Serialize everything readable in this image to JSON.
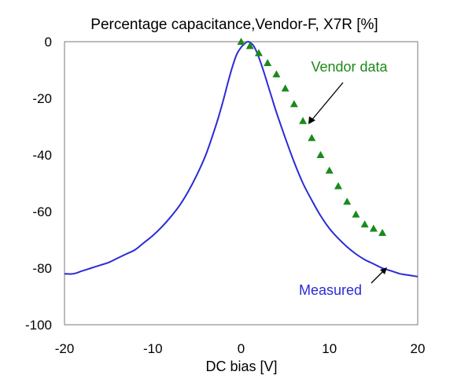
{
  "chart_data": {
    "type": "line",
    "title": "Percentage capacitance,Vendor-F, X7R [%]",
    "xlabel": "DC bias [V]",
    "ylabel": "",
    "xlim": [
      -20,
      20
    ],
    "ylim": [
      -100,
      0
    ],
    "x_ticks": [
      "-20",
      "-10",
      "0",
      "10",
      "20"
    ],
    "y_ticks": [
      "0",
      "-20",
      "-40",
      "-60",
      "-80",
      "-100"
    ],
    "grid": false,
    "colors": {
      "measured": "#2b2bd6",
      "vendor": "#1a8a1a",
      "arrow": "#000000"
    },
    "series": [
      {
        "name": "Measured",
        "style": "line",
        "x": [
          -20,
          -19,
          -18,
          -17,
          -16,
          -15,
          -14,
          -13,
          -12,
          -11,
          -10,
          -9,
          -8,
          -7,
          -6,
          -5,
          -4,
          -3,
          -2.5,
          -2,
          -1.5,
          -1,
          -0.5,
          0,
          0.3,
          0.6,
          0.8,
          1,
          1.3,
          1.6,
          2,
          2.5,
          3,
          3.5,
          4,
          5,
          6,
          7,
          8,
          9,
          10,
          11,
          12,
          13,
          14,
          15,
          16,
          17,
          18,
          19,
          20
        ],
        "y": [
          -82,
          -82,
          -81,
          -80,
          -79,
          -78,
          -76.5,
          -75,
          -73.5,
          -71,
          -68.5,
          -65.5,
          -62,
          -58,
          -53,
          -47,
          -40,
          -31,
          -26,
          -20.5,
          -14.5,
          -9,
          -4.5,
          -2,
          -1,
          -0.2,
          0,
          -0.3,
          -1,
          -2.5,
          -5.5,
          -10,
          -15,
          -20,
          -25,
          -34,
          -42.5,
          -50,
          -56,
          -61.5,
          -66,
          -69.5,
          -72.5,
          -75,
          -77,
          -78.5,
          -80,
          -81,
          -82,
          -82.5,
          -83
        ]
      },
      {
        "name": "Vendor data",
        "style": "marker-triangle",
        "x": [
          0,
          1,
          2,
          3,
          4,
          5,
          6,
          7,
          8,
          9,
          10,
          11,
          12,
          13,
          14,
          15,
          16
        ],
        "y": [
          0,
          -1.5,
          -4,
          -7.5,
          -11.5,
          -16.5,
          -22,
          -28,
          -34,
          -40,
          -45.5,
          -51,
          -56.5,
          -61,
          -64.5,
          -66,
          -67.5
        ]
      }
    ],
    "annotations": [
      {
        "text": "Vendor data",
        "series": "Vendor data"
      },
      {
        "text": "Measured",
        "series": "Measured"
      }
    ]
  }
}
